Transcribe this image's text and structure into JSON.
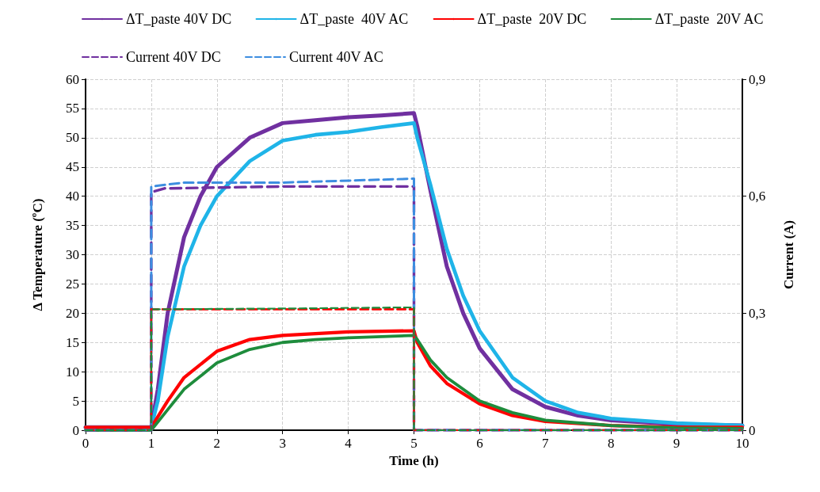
{
  "chart_data": {
    "type": "line",
    "xlabel": "Time (h)",
    "ylabel": "Δ Temperature (ºC)",
    "y2label": "Current (A)",
    "xlim": [
      0,
      10
    ],
    "xticks": [
      0,
      1,
      2,
      3,
      4,
      5,
      6,
      7,
      8,
      9,
      10
    ],
    "ylim": [
      0,
      60
    ],
    "yticks": [
      0,
      5,
      10,
      15,
      20,
      25,
      30,
      35,
      40,
      45,
      50,
      55,
      60
    ],
    "y2lim": [
      0,
      0.9
    ],
    "y2ticks": [
      {
        "value": 0,
        "label": "0"
      },
      {
        "value": 0.3,
        "label": "0,3"
      },
      {
        "value": 0.6,
        "label": "0,6"
      },
      {
        "value": 0.9,
        "label": "0,9"
      }
    ],
    "grid": true,
    "legend": "top",
    "marker": "none",
    "series": [
      {
        "name": "ΔT_paste 40V DC",
        "color": "#7030a0",
        "line_style": "solid",
        "x": [
          0,
          1,
          1.1,
          1.25,
          1.5,
          1.75,
          2,
          2.5,
          3,
          3.5,
          4,
          4.5,
          5,
          5.05,
          5.25,
          5.5,
          5.75,
          6,
          6.5,
          7,
          7.5,
          8,
          9,
          10
        ],
        "values": [
          0.5,
          0.5,
          7,
          20,
          33,
          40,
          45,
          50,
          52.5,
          53,
          53.5,
          53.8,
          54.2,
          52,
          41,
          28,
          20,
          14,
          7,
          4,
          2.5,
          1.7,
          1,
          0.8
        ]
      },
      {
        "name": "ΔT_paste  40V AC",
        "color": "#1fb4e8",
        "line_style": "solid",
        "x": [
          0,
          1,
          1.1,
          1.25,
          1.5,
          1.75,
          2,
          2.5,
          3,
          3.5,
          4,
          4.5,
          5,
          5.05,
          5.25,
          5.5,
          5.75,
          6,
          6.5,
          7,
          7.5,
          8,
          9,
          10
        ],
        "values": [
          0.5,
          0.5,
          5,
          16,
          28,
          35,
          40,
          46,
          49.5,
          50.5,
          51,
          51.8,
          52.5,
          50,
          42,
          31,
          23,
          17,
          9,
          5,
          3,
          2,
          1.2,
          0.8
        ]
      },
      {
        "name": "ΔT_paste  20V DC",
        "color": "#ff0000",
        "line_style": "solid",
        "x": [
          0,
          1,
          1.25,
          1.5,
          2,
          2.5,
          3,
          3.5,
          4,
          5,
          5.05,
          5.25,
          5.5,
          6,
          6.5,
          7,
          8,
          9,
          10
        ],
        "values": [
          0.5,
          0.5,
          5,
          9,
          13.5,
          15.5,
          16.2,
          16.5,
          16.8,
          17,
          15,
          11,
          8,
          4.5,
          2.5,
          1.5,
          0.8,
          0.5,
          0.5
        ]
      },
      {
        "name": "ΔT_paste  20V AC",
        "color": "#1e8c3c",
        "line_style": "solid",
        "x": [
          0,
          1,
          1.25,
          1.5,
          2,
          2.5,
          3,
          3.5,
          4,
          5,
          5.05,
          5.25,
          5.5,
          6,
          6.5,
          7,
          8,
          9,
          10
        ],
        "values": [
          0,
          0,
          3.5,
          7,
          11.5,
          13.8,
          15,
          15.5,
          15.8,
          16.2,
          15.5,
          12,
          9,
          5,
          3,
          1.7,
          0.8,
          0.4,
          0.3
        ]
      },
      {
        "name": "Current 40V DC",
        "color": "#7030a0",
        "line_style": "dashed",
        "axis": "y2",
        "x": [
          0,
          1,
          1,
          1.2,
          3,
          5,
          5,
          10
        ],
        "values": [
          0,
          0,
          0.61,
          0.62,
          0.625,
          0.625,
          0,
          0
        ]
      },
      {
        "name": "Current 40V AC",
        "color": "#3d8ee0",
        "line_style": "dashed",
        "axis": "y2",
        "x": [
          0,
          1,
          1,
          1.5,
          3,
          5,
          5,
          10
        ],
        "values": [
          0,
          0,
          0.625,
          0.635,
          0.635,
          0.645,
          0,
          0
        ]
      },
      {
        "color": "#ff0000",
        "line_style": "dashed",
        "axis": "y2",
        "x": [
          0,
          1,
          1,
          3,
          5,
          5,
          10
        ],
        "values": [
          0,
          0,
          0.31,
          0.31,
          0.31,
          0,
          0
        ]
      },
      {
        "color": "#1e8c3c",
        "line_style": "dashed",
        "axis": "y2",
        "x": [
          0,
          1,
          1,
          3,
          5,
          5,
          10
        ],
        "values": [
          0,
          0,
          0.31,
          0.312,
          0.315,
          0,
          0
        ]
      }
    ]
  }
}
